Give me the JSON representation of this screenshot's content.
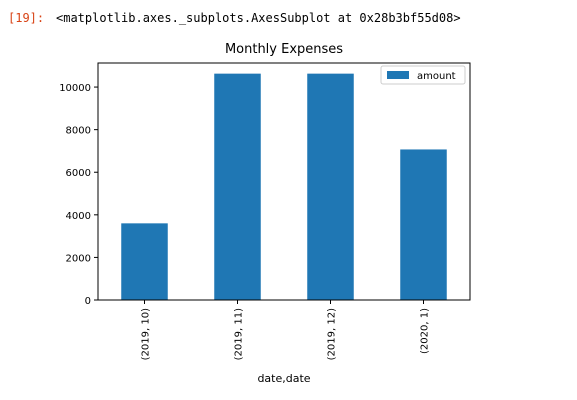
{
  "output": {
    "prompt": "[19]:",
    "repr": "<matplotlib.axes._subplots.AxesSubplot at 0x28b3bf55d08>"
  },
  "chart_data": {
    "type": "bar",
    "title": "Monthly Expenses",
    "xlabel": "date,date",
    "ylabel": "",
    "categories": [
      "(2019, 10)",
      "(2019, 11)",
      "(2019, 12)",
      "(2020, 1)"
    ],
    "series": [
      {
        "name": "amount",
        "values": [
          3600,
          10630,
          10630,
          7070
        ],
        "color": "#1f77b4"
      }
    ],
    "ylim": [
      0,
      11130
    ],
    "yticks": [
      0,
      2000,
      4000,
      6000,
      8000,
      10000
    ],
    "ytick_labels": [
      "0",
      "2000",
      "4000",
      "6000",
      "8000",
      "10000"
    ],
    "grid": false,
    "legend": "top-right"
  }
}
